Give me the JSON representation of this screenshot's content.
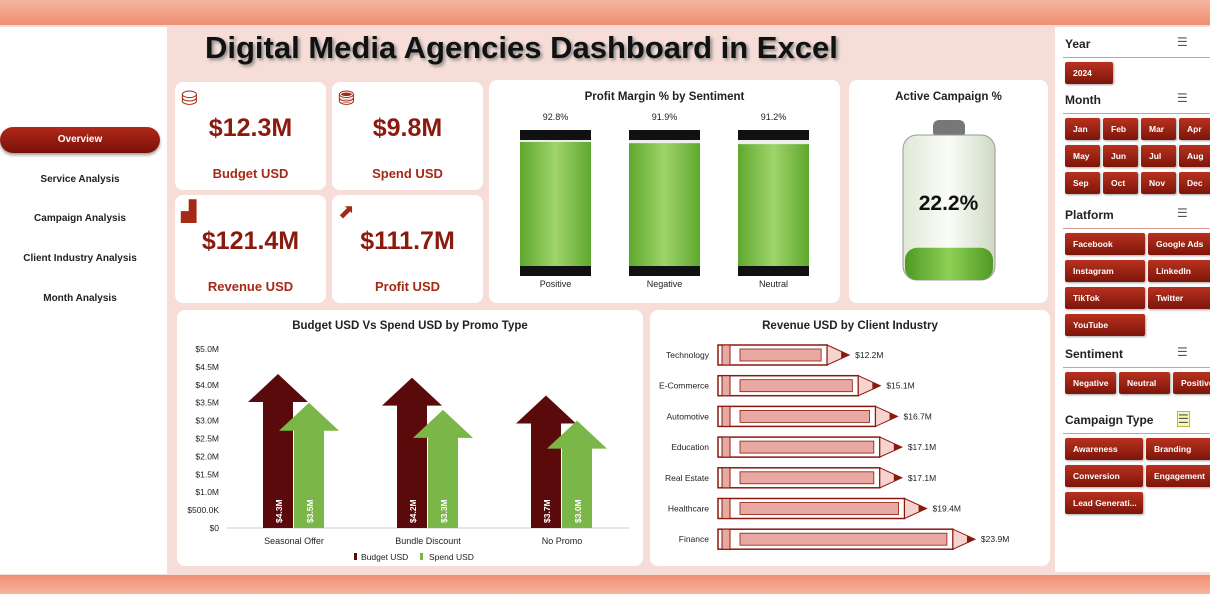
{
  "title": "Digital Media Agencies Dashboard in Excel",
  "nav": [
    "Overview",
    "Service Analysis",
    "Campaign Analysis",
    "Client Industry Analysis",
    "Month Analysis"
  ],
  "kpis": [
    {
      "value": "$12.3M",
      "label": "Budget USD",
      "icon": "money-bag-icon"
    },
    {
      "value": "$9.8M",
      "label": "Spend USD",
      "icon": "wallet-icon"
    },
    {
      "value": "$121.4M",
      "label": "Revenue USD",
      "icon": "bar-chart-icon"
    },
    {
      "value": "$111.7M",
      "label": "Profit USD",
      "icon": "growth-chart-icon"
    }
  ],
  "colors": {
    "accent": "#8b1a0e",
    "budget": "#5a0a0a",
    "spend": "#7ab648",
    "revenue_pencil": "#e8a9a3"
  },
  "chart_data": [
    {
      "type": "bar",
      "title": "Profit Margin % by Sentiment",
      "categories": [
        "Positive",
        "Negative",
        "Neutral"
      ],
      "values": [
        92.8,
        91.9,
        91.2
      ],
      "labels": [
        "92.8%",
        "91.9%",
        "91.2%"
      ],
      "ylim": [
        0,
        100
      ]
    },
    {
      "type": "gauge",
      "title": "Active Campaign %",
      "value": 22.2,
      "label": "22.2%"
    },
    {
      "type": "bar",
      "title": "Budget USD Vs Spend USD by Promo Type",
      "categories": [
        "Seasonal Offer",
        "Bundle Discount",
        "No Promo"
      ],
      "series": [
        {
          "name": "Budget USD",
          "values": [
            4.3,
            4.2,
            3.7
          ],
          "labels": [
            "$4.3M",
            "$4.2M",
            "$3.7M"
          ]
        },
        {
          "name": "Spend USD",
          "values": [
            3.5,
            3.3,
            3.0
          ],
          "labels": [
            "$3.5M",
            "$3.3M",
            "$3.0M"
          ]
        }
      ],
      "yticks": [
        "$0",
        "$500.0K",
        "$1.0M",
        "$1.5M",
        "$2.0M",
        "$2.5M",
        "$3.0M",
        "$3.5M",
        "$4.0M",
        "$4.5M",
        "$5.0M"
      ],
      "ylim": [
        0,
        5
      ],
      "legend": "bottom"
    },
    {
      "type": "bar",
      "orientation": "horizontal",
      "title": "Revenue USD by Client Industry",
      "categories": [
        "Technology",
        "E-Commerce",
        "Automotive",
        "Education",
        "Real Estate",
        "Healthcare",
        "Finance"
      ],
      "values": [
        12.2,
        15.1,
        16.7,
        17.1,
        17.1,
        19.4,
        23.9
      ],
      "labels": [
        "$12.2M",
        "$15.1M",
        "$16.7M",
        "$17.1M",
        "$17.1M",
        "$19.4M",
        "$23.9M"
      ]
    }
  ],
  "slicers": [
    {
      "title": "Year",
      "items": [
        "2024"
      ]
    },
    {
      "title": "Month",
      "items": [
        "Jan",
        "Feb",
        "Mar",
        "Apr",
        "May",
        "Jun",
        "Jul",
        "Aug",
        "Sep",
        "Oct",
        "Nov",
        "Dec"
      ]
    },
    {
      "title": "Platform",
      "items": [
        "Facebook",
        "Google Ads",
        "Instagram",
        "LinkedIn",
        "TikTok",
        "Twitter",
        "YouTube"
      ]
    },
    {
      "title": "Sentiment",
      "items": [
        "Negative",
        "Neutral",
        "Positive"
      ]
    },
    {
      "title": "Campaign Type",
      "items": [
        "Awareness",
        "Branding",
        "Conversion",
        "Engagement",
        "Lead Generati..."
      ]
    }
  ]
}
